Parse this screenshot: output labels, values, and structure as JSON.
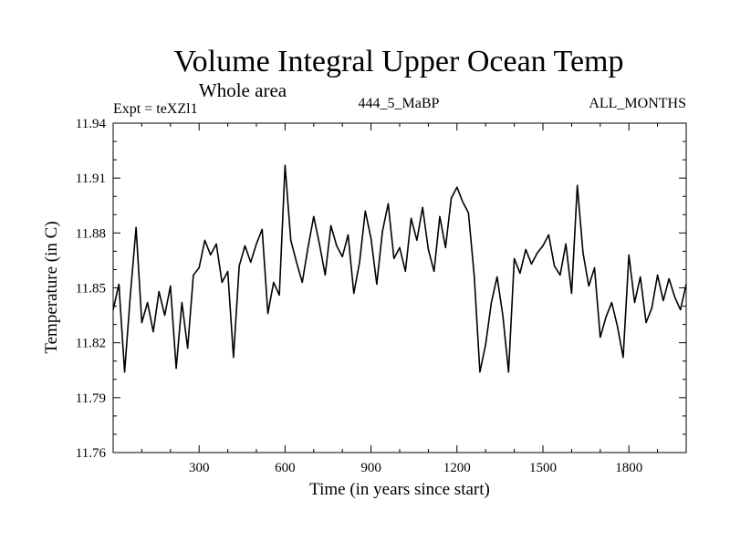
{
  "chart_data": {
    "type": "line",
    "title": "Volume Integral Upper Ocean Temp",
    "subtitle": "Whole area",
    "experiment_label": "Expt = teXZl1",
    "run_label": "444_5_MaBP",
    "months_label": "ALL_MONTHS",
    "xlabel": "Time (in years since start)",
    "ylabel": "Temperature (in C)",
    "xlim": [
      0,
      2000
    ],
    "ylim": [
      11.76,
      11.94
    ],
    "xticks": [
      300,
      600,
      900,
      1200,
      1500,
      1800
    ],
    "xtick_labels": [
      "300",
      "600",
      "900",
      "1200",
      "1500",
      "1800"
    ],
    "yticks": [
      11.76,
      11.79,
      11.82,
      11.85,
      11.88,
      11.91,
      11.94
    ],
    "ytick_labels": [
      "11.76",
      "11.79",
      "11.82",
      "11.85",
      "11.88",
      "11.91",
      "11.94"
    ],
    "grid": false,
    "series": [
      {
        "name": "Volume Integral Upper Ocean Temp",
        "color": "#000000",
        "x": [
          0,
          20,
          40,
          60,
          80,
          100,
          120,
          140,
          160,
          180,
          200,
          220,
          240,
          260,
          280,
          300,
          320,
          340,
          360,
          380,
          400,
          420,
          440,
          460,
          480,
          500,
          520,
          540,
          560,
          580,
          600,
          620,
          640,
          660,
          680,
          700,
          720,
          740,
          760,
          780,
          800,
          820,
          840,
          860,
          880,
          900,
          920,
          940,
          960,
          980,
          1000,
          1020,
          1040,
          1060,
          1080,
          1100,
          1120,
          1140,
          1160,
          1180,
          1200,
          1220,
          1240,
          1260,
          1280,
          1300,
          1320,
          1340,
          1360,
          1380,
          1400,
          1420,
          1440,
          1460,
          1480,
          1500,
          1520,
          1540,
          1560,
          1580,
          1600,
          1620,
          1640,
          1660,
          1680,
          1700,
          1720,
          1740,
          1760,
          1780,
          1800,
          1820,
          1840,
          1860,
          1880,
          1900,
          1920,
          1940,
          1960,
          1980,
          2000
        ],
        "values": [
          11.838,
          11.852,
          11.804,
          11.846,
          11.883,
          11.831,
          11.842,
          11.826,
          11.848,
          11.835,
          11.851,
          11.806,
          11.842,
          11.817,
          11.857,
          11.861,
          11.876,
          11.868,
          11.874,
          11.853,
          11.859,
          11.812,
          11.862,
          11.873,
          11.864,
          11.874,
          11.882,
          11.836,
          11.853,
          11.846,
          11.917,
          11.876,
          11.864,
          11.853,
          11.872,
          11.889,
          11.874,
          11.857,
          11.884,
          11.873,
          11.867,
          11.879,
          11.847,
          11.864,
          11.892,
          11.877,
          11.852,
          11.881,
          11.896,
          11.866,
          11.872,
          11.859,
          11.888,
          11.876,
          11.894,
          11.871,
          11.859,
          11.889,
          11.872,
          11.899,
          11.905,
          11.897,
          11.891,
          11.857,
          11.804,
          11.819,
          11.842,
          11.856,
          11.835,
          11.804,
          11.866,
          11.858,
          11.871,
          11.863,
          11.869,
          11.873,
          11.879,
          11.862,
          11.857,
          11.874,
          11.847,
          11.906,
          11.869,
          11.851,
          11.861,
          11.823,
          11.834,
          11.842,
          11.829,
          11.812,
          11.868,
          11.842,
          11.856,
          11.831,
          11.839,
          11.857,
          11.843,
          11.855,
          11.845,
          11.838,
          11.852
        ]
      }
    ]
  }
}
